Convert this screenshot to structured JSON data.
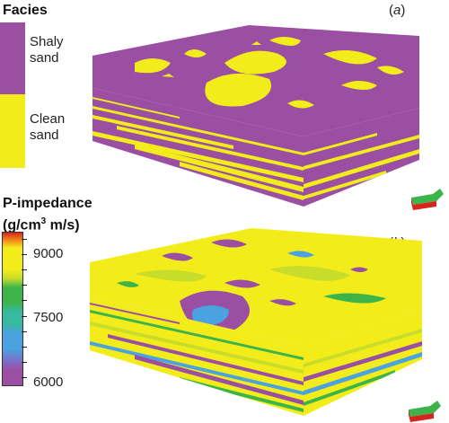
{
  "top_panel": {
    "legend_title": "Facies",
    "panel_label_open": "(",
    "panel_label_letter": "a",
    "panel_label_close": ")",
    "categories": [
      {
        "label_line1": "Shaly",
        "label_line2": "sand",
        "color": "#9b4fa3"
      },
      {
        "label_line1": "Clean",
        "label_line2": "sand",
        "color": "#f2ec1b"
      }
    ]
  },
  "bottom_panel": {
    "legend_title_line1": "P-impedance",
    "legend_title_line2_pre": "(g/cm",
    "legend_title_sup": "3",
    "legend_title_line2_post": " m/s)",
    "panel_label_open": "(",
    "panel_label_letter": "b",
    "panel_label_close": ")",
    "ticks": [
      "9000",
      "7500",
      "6000"
    ],
    "colorbar_colors": [
      "#9b4fa3",
      "#4aa3e0",
      "#39b9a0",
      "#3cb44a",
      "#c8dc2a",
      "#f2ec1b",
      "#f28a1a",
      "#d9231d"
    ]
  },
  "colors": {
    "shaly": "#9b4fa3",
    "clean": "#f2ec1b",
    "green": "#3cb44a",
    "blue": "#4aa3e0",
    "teal": "#39b9a0",
    "axis_red": "#d9231d",
    "axis_green": "#3cb44a"
  }
}
